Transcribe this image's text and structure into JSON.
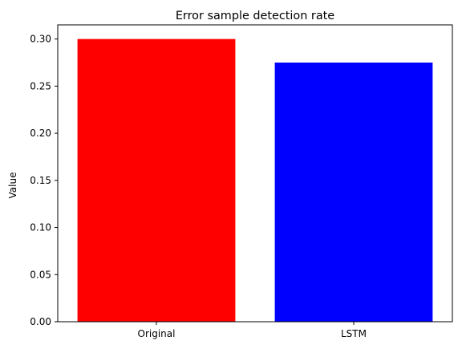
{
  "chart_data": {
    "type": "bar",
    "title": "Error sample detection rate",
    "xlabel": "",
    "ylabel": "Value",
    "categories": [
      "Original",
      "LSTM"
    ],
    "values": [
      0.3,
      0.275
    ],
    "colors": [
      "#ff0000",
      "#0000ff"
    ],
    "ylim": [
      0,
      0.315
    ],
    "yticks": [
      0.0,
      0.05,
      0.1,
      0.15,
      0.2,
      0.25,
      0.3
    ],
    "ytick_labels": [
      "0.00",
      "0.05",
      "0.10",
      "0.15",
      "0.20",
      "0.25",
      "0.30"
    ],
    "grid": false,
    "legend": "none"
  }
}
